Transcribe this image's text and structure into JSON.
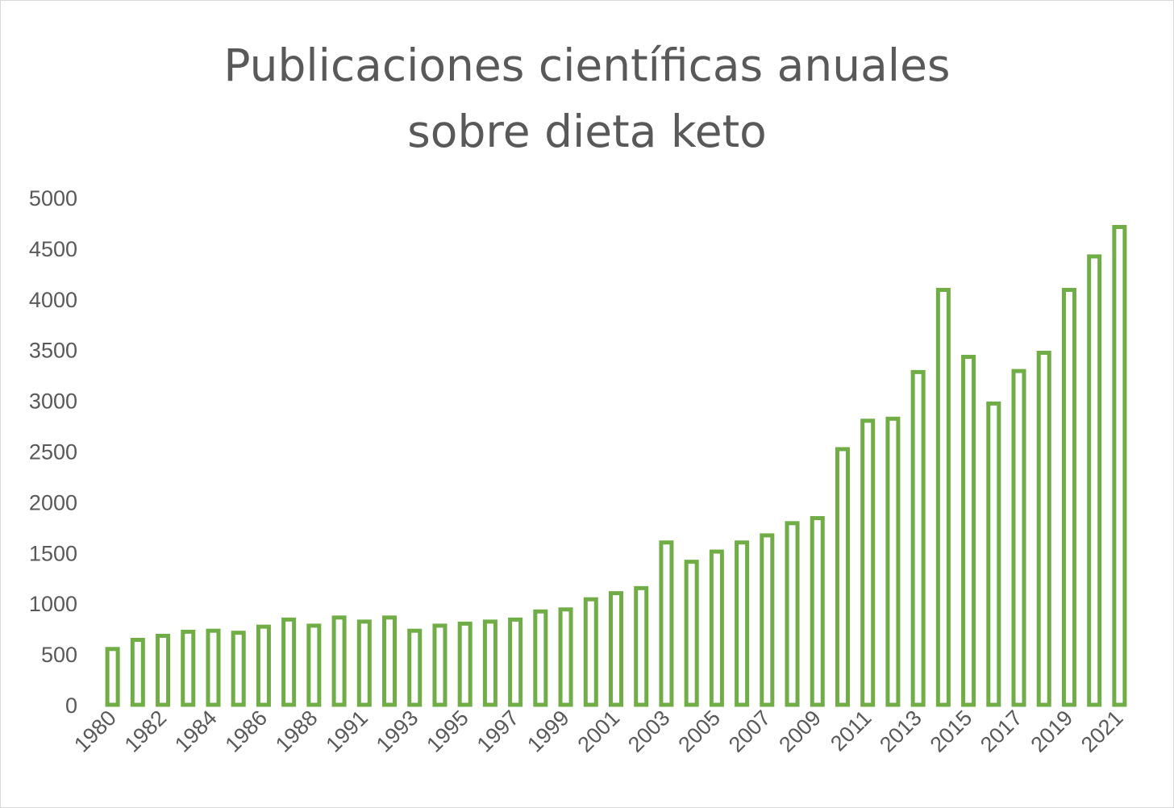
{
  "chart_data": {
    "type": "bar",
    "title_lines": [
      "Publicaciones científicas anuales",
      "sobre dieta keto"
    ],
    "xlabel": "",
    "ylabel": "",
    "ylim": [
      0,
      5000
    ],
    "yticks": [
      "0",
      "500",
      "1000",
      "1500",
      "2000",
      "2500",
      "3000",
      "3500",
      "4000",
      "4500",
      "5000"
    ],
    "grid": false,
    "legend": "none",
    "bar_color": "#70ad47",
    "categories": [
      "1980",
      "1981",
      "1982",
      "1983",
      "1984",
      "1985",
      "1986",
      "1987",
      "1988",
      "1990",
      "1991",
      "1992",
      "1993",
      "1994",
      "1995",
      "1996",
      "1997",
      "1998",
      "1999",
      "2000",
      "2001",
      "2002",
      "2003",
      "2004",
      "2005",
      "2006",
      "2007",
      "2008",
      "2009",
      "2010",
      "2011",
      "2012",
      "2013",
      "2014",
      "2015",
      "2016",
      "2017",
      "2018",
      "2019",
      "2020",
      "2021"
    ],
    "tick_labels": [
      "1980",
      "1982",
      "1984",
      "1986",
      "1988",
      "1991",
      "1993",
      "1995",
      "1997",
      "1999",
      "2001",
      "2003",
      "2005",
      "2007",
      "2009",
      "2011",
      "2013",
      "2015",
      "2017",
      "2019",
      "2021"
    ],
    "values": [
      550,
      640,
      680,
      720,
      730,
      710,
      770,
      840,
      780,
      860,
      820,
      860,
      730,
      780,
      800,
      820,
      840,
      920,
      940,
      1040,
      1100,
      1150,
      1600,
      1410,
      1510,
      1600,
      1670,
      1790,
      1840,
      2520,
      2800,
      2820,
      3280,
      4090,
      3430,
      2970,
      3290,
      3470,
      4090,
      4420,
      4710
    ]
  }
}
